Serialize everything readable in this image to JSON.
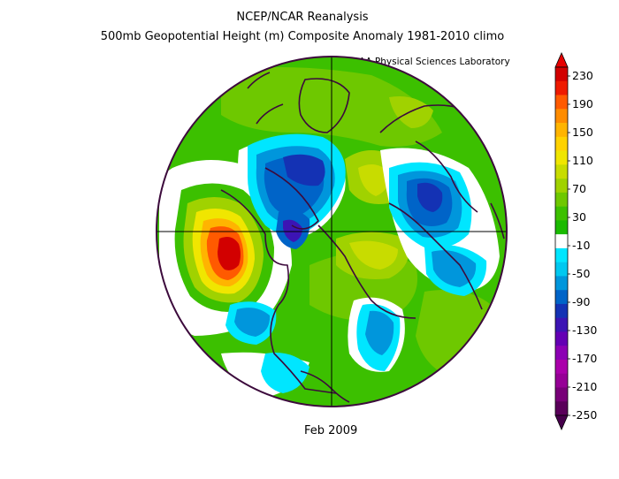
{
  "title": "NCEP/NCAR Reanalysis",
  "subtitle": "500mb Geopotential Height (m) Composite Anomaly 1981-2010 climo",
  "credit": "NOAA Physical Sciences Laboratory",
  "date_label": "Feb 2009",
  "colorbar": {
    "labels": [
      "230",
      "190",
      "150",
      "110",
      "70",
      "30",
      "-10",
      "-50",
      "-90",
      "-130",
      "-170",
      "-210",
      "-250"
    ],
    "colors": [
      "#d20000",
      "#ee1a00",
      "#ff5a00",
      "#ff8c00",
      "#ffb400",
      "#ffd200",
      "#f0e600",
      "#c8dc00",
      "#a0d200",
      "#6ec800",
      "#3cc000",
      "#1aba00",
      "#ffffff",
      "#00e6ff",
      "#00c8f0",
      "#0096dc",
      "#0064c8",
      "#1432b4",
      "#3c14b4",
      "#6400b4",
      "#8c00b4",
      "#aa00aa",
      "#960096",
      "#780078",
      "#5a005a"
    ],
    "top_arrow": "#e60000",
    "bottom_arrow": "#46004b"
  },
  "map": {
    "projection": "north polar stereographic",
    "colors": {
      "background_green": "#3cc000",
      "light_green": "#6ec800",
      "yellow_green": "#a0d200",
      "yellow": "#c8dc00",
      "neutral": "#ffffff",
      "cyan": "#00e6ff",
      "light_blue": "#00c8f0",
      "mid_blue": "#0096dc",
      "blue": "#0064c8",
      "dark_blue": "#1432b4",
      "purple": "#3c14b4",
      "orange": "#ffb400",
      "dark_orange": "#ff8c00",
      "red_orange": "#ff5a00",
      "red": "#d20000",
      "coast": "#3c0a3c"
    }
  }
}
